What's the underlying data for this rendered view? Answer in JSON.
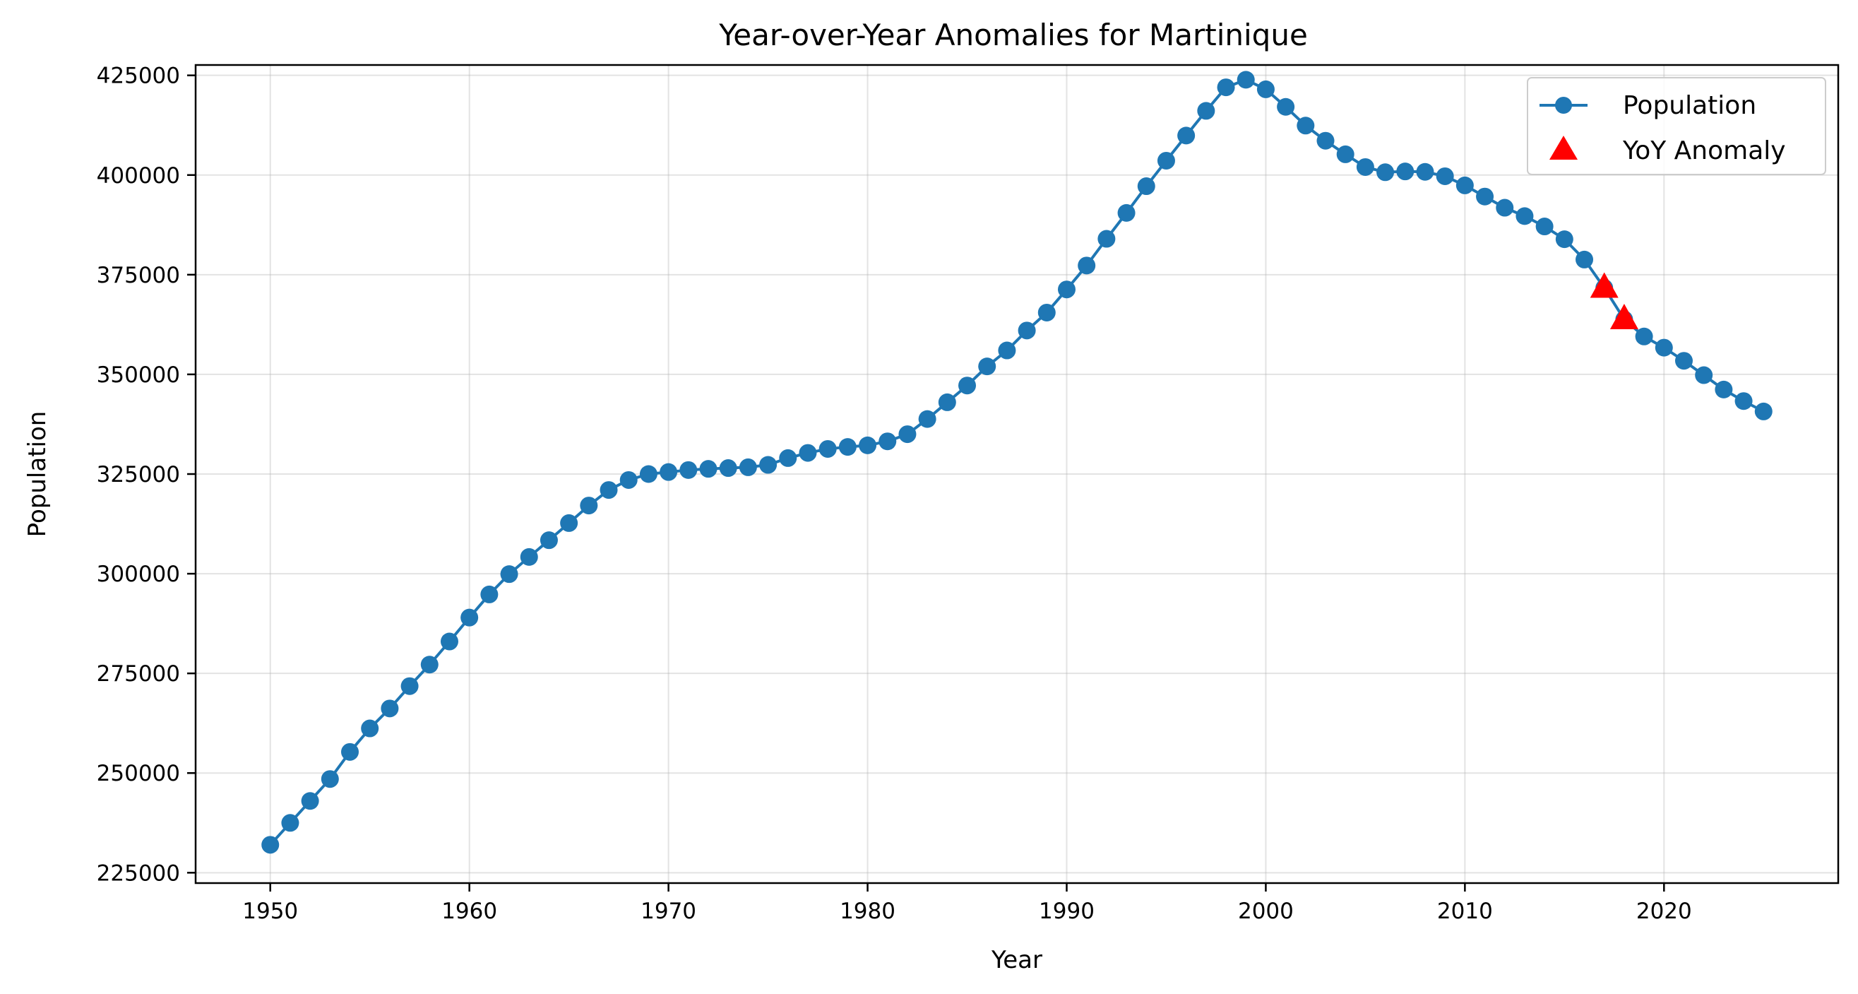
{
  "chart_data": {
    "type": "line",
    "title": "Year-over-Year Anomalies for Martinique",
    "xlabel": "Year",
    "ylabel": "Population",
    "xlim": [
      1946.25,
      2028.75
    ],
    "ylim": [
      222400,
      427600
    ],
    "x_ticks": [
      1950,
      1960,
      1970,
      1980,
      1990,
      2000,
      2010,
      2020
    ],
    "y_ticks": [
      225000,
      250000,
      275000,
      300000,
      325000,
      350000,
      375000,
      400000,
      425000
    ],
    "grid": true,
    "legend_position": "top-right",
    "series": [
      {
        "name": "Population",
        "color": "#1f77b4",
        "marker": "circle",
        "x": [
          1950,
          1951,
          1952,
          1953,
          1954,
          1955,
          1956,
          1957,
          1958,
          1959,
          1960,
          1961,
          1962,
          1963,
          1964,
          1965,
          1966,
          1967,
          1968,
          1969,
          1970,
          1971,
          1972,
          1973,
          1974,
          1975,
          1976,
          1977,
          1978,
          1979,
          1980,
          1981,
          1982,
          1983,
          1984,
          1985,
          1986,
          1987,
          1988,
          1989,
          1990,
          1991,
          1992,
          1993,
          1994,
          1995,
          1996,
          1997,
          1998,
          1999,
          2000,
          2001,
          2002,
          2003,
          2004,
          2005,
          2006,
          2007,
          2008,
          2009,
          2010,
          2011,
          2012,
          2013,
          2014,
          2015,
          2016,
          2017,
          2018,
          2019,
          2020,
          2021,
          2022,
          2023,
          2024,
          2025
        ],
        "y": [
          232000,
          237500,
          243000,
          248500,
          255300,
          261200,
          266200,
          271800,
          277200,
          283000,
          289000,
          294800,
          299900,
          304200,
          308400,
          312700,
          317100,
          321000,
          323500,
          325000,
          325500,
          326000,
          326300,
          326500,
          326700,
          327300,
          329000,
          330300,
          331300,
          331800,
          332200,
          333200,
          335000,
          338800,
          343000,
          347200,
          352000,
          356000,
          361000,
          365500,
          371300,
          377300,
          384000,
          390500,
          397200,
          403600,
          409900,
          416100,
          422000,
          423900,
          421500,
          417100,
          412400,
          408600,
          405200,
          402000,
          400700,
          400900,
          400800,
          399700,
          397400,
          394600,
          391800,
          389700,
          387100,
          383900,
          378800,
          371700,
          363800,
          359500,
          356700,
          353400,
          349800,
          346200,
          343300,
          340700
        ]
      },
      {
        "name": "YoY Anomaly",
        "color": "#ff0000",
        "marker": "triangle",
        "x": [
          2017,
          2018
        ],
        "y": [
          371700,
          363800
        ]
      }
    ]
  }
}
